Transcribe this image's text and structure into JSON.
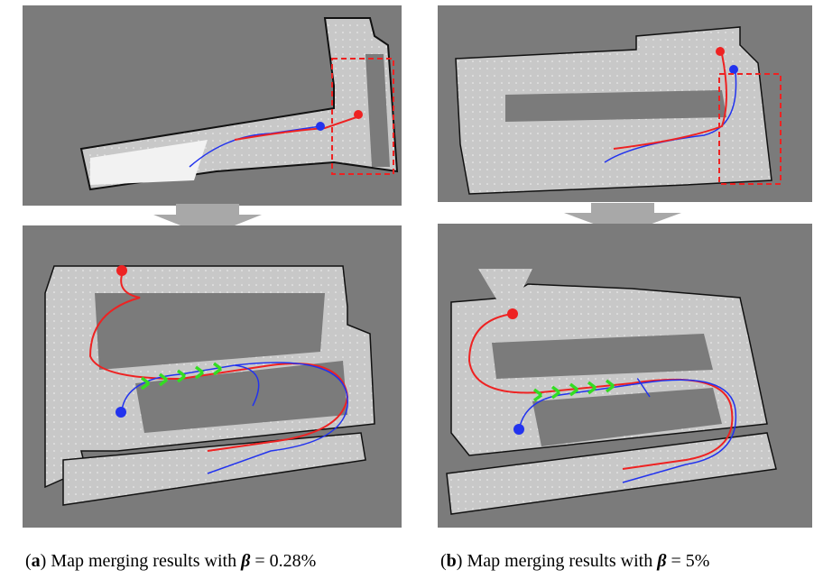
{
  "captions": [
    {
      "open": "(",
      "label": "a",
      "close": ")",
      "text": " Map merging results with ",
      "symbol": "β",
      "rest": " = 0.28%"
    },
    {
      "open": "(",
      "label": "b",
      "close": ")",
      "text": " Map merging results with ",
      "symbol": "β",
      "rest": " = 5%"
    }
  ]
}
